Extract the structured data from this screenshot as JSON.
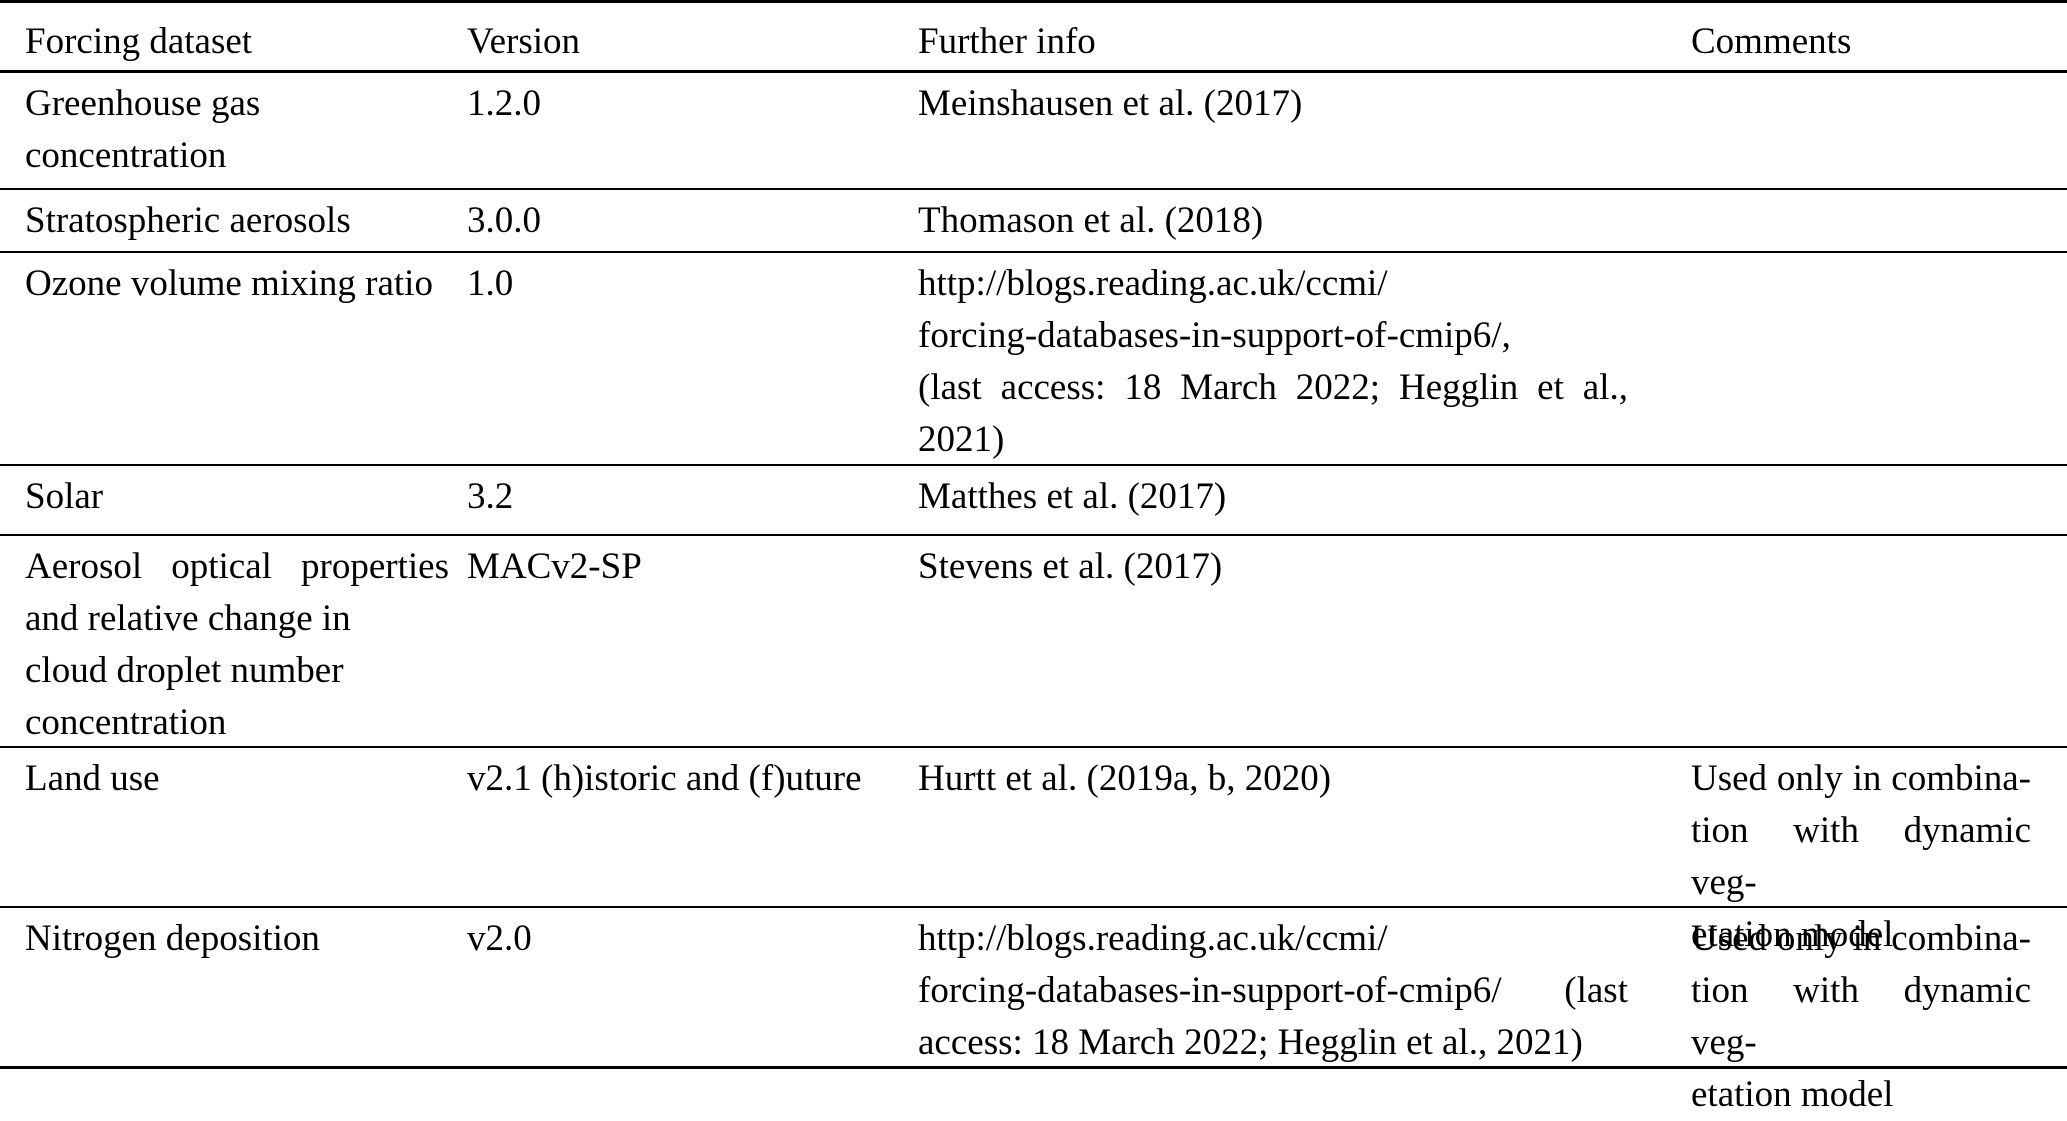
{
  "colors": {
    "background": "#ffffff",
    "text": "#000000",
    "rule": "#000000"
  },
  "table": {
    "columns": [
      {
        "label": "Forcing dataset"
      },
      {
        "label": "Version"
      },
      {
        "label": "Further info"
      },
      {
        "label": "Comments"
      }
    ],
    "rows": [
      {
        "dataset": [
          "Greenhouse gas",
          "concentration"
        ],
        "version": "1.2.0",
        "info": [
          "Meinshausen et al. (2017)"
        ],
        "comments": []
      },
      {
        "dataset": [
          "Stratospheric aerosols"
        ],
        "version": "3.0.0",
        "info": [
          "Thomason et al. (2018)"
        ],
        "comments": []
      },
      {
        "dataset": [
          "Ozone volume mixing ratio"
        ],
        "version": "1.0",
        "info": [
          "http://blogs.reading.ac.uk/ccmi/",
          "forcing-databases-in-support-of-cmip6/,",
          {
            "text": "(last access: 18 March 2022; Hegglin et al.,",
            "justify": true
          },
          "2021)"
        ],
        "comments": []
      },
      {
        "dataset": [
          "Solar"
        ],
        "version": "3.2",
        "info": [
          "Matthes et al. (2017)"
        ],
        "comments": []
      },
      {
        "dataset": [
          {
            "text": "Aerosol optical properties",
            "justify": true
          },
          "and relative change in",
          "cloud droplet number",
          "concentration"
        ],
        "version": "MACv2-SP",
        "info": [
          "Stevens et al. (2017)"
        ],
        "comments": []
      },
      {
        "dataset": [
          "Land use"
        ],
        "version": "v2.1 (h)istoric and (f)uture",
        "info": [
          "Hurtt et al. (2019a, b, 2020)"
        ],
        "comments": [
          {
            "text": "Used only in combina-",
            "justify": true
          },
          {
            "text": "tion with dynamic veg-",
            "justify": true
          },
          "etation model"
        ]
      },
      {
        "dataset": [
          "Nitrogen deposition"
        ],
        "version": "v2.0",
        "info": [
          "http://blogs.reading.ac.uk/ccmi/",
          {
            "text": "forcing-databases-in-support-of-cmip6/ (last",
            "justify": true
          },
          "access: 18 March 2022; Hegglin et al., 2021)"
        ],
        "comments": [
          {
            "text": "Used only in combina-",
            "justify": true
          },
          {
            "text": "tion with dynamic veg-",
            "justify": true
          },
          "etation model"
        ]
      }
    ]
  }
}
